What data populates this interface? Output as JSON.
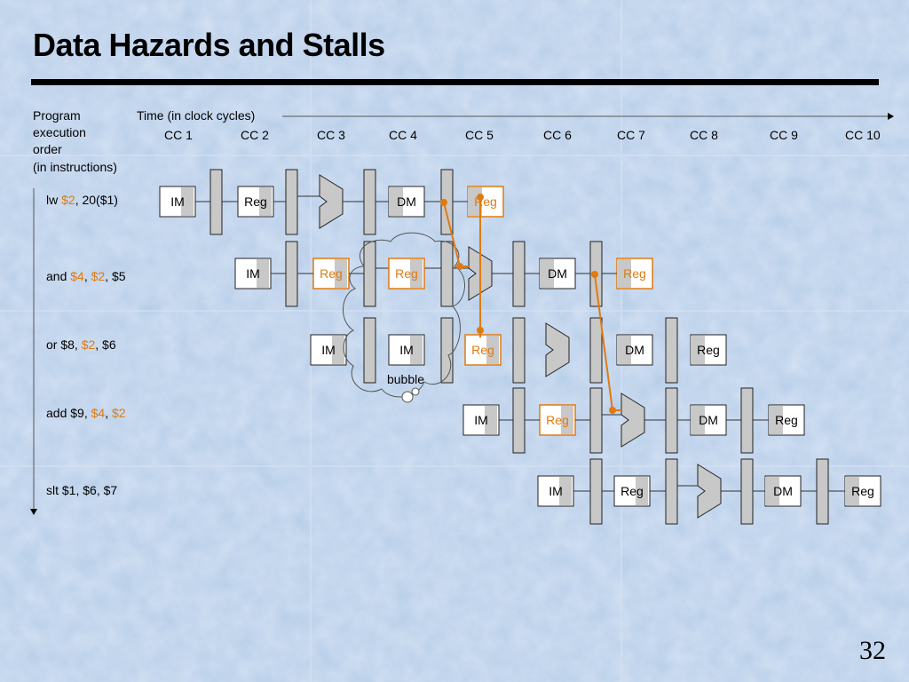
{
  "title": "Data Hazards and Stalls",
  "axis": {
    "left_label_lines": [
      "Program",
      "execution",
      "order",
      "(in instructions)"
    ],
    "time_label": "Time (in clock cycles)",
    "clock_cycles": [
      "CC 1",
      "CC 2",
      "CC 3",
      "CC 4",
      "CC 5",
      "CC 6",
      "CC 7",
      "CC 8",
      "CC 9",
      "CC 10"
    ]
  },
  "instructions": [
    {
      "parts": [
        {
          "text": "lw ",
          "hazard": false
        },
        {
          "text": "$2",
          "hazard": true
        },
        {
          "text": ", 20($1)",
          "hazard": false
        }
      ]
    },
    {
      "parts": [
        {
          "text": "and ",
          "hazard": false
        },
        {
          "text": "$4",
          "hazard": true
        },
        {
          "text": ", ",
          "hazard": false
        },
        {
          "text": "$2",
          "hazard": true
        },
        {
          "text": ", $5",
          "hazard": false
        }
      ]
    },
    {
      "parts": [
        {
          "text": "or $8, ",
          "hazard": false
        },
        {
          "text": "$2",
          "hazard": true
        },
        {
          "text": ", $6",
          "hazard": false
        }
      ]
    },
    {
      "parts": [
        {
          "text": "add $9, ",
          "hazard": false
        },
        {
          "text": "$4",
          "hazard": true
        },
        {
          "text": ", ",
          "hazard": false
        },
        {
          "text": "$2",
          "hazard": true
        }
      ]
    },
    {
      "parts": [
        {
          "text": "slt $1, $6, $7",
          "hazard": false
        }
      ]
    }
  ],
  "stage_labels": {
    "im": "IM",
    "reg": "Reg",
    "dm": "DM"
  },
  "bubble_label": "bubble",
  "page_number": "32",
  "colors": {
    "hazard": "#e07a10",
    "stage_fill": "#c8c8c8",
    "background": "#b9cfe9",
    "rule": "#000000"
  }
}
